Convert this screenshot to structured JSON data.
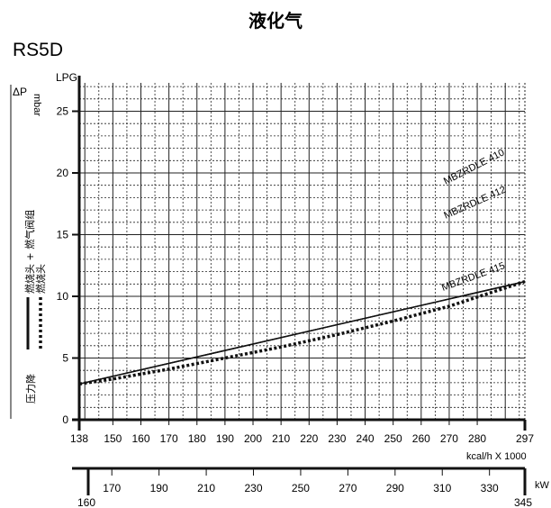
{
  "title": "液化气",
  "model": "RS5D",
  "fuel_label": "LPG",
  "y_symbol": "ΔP",
  "y_unit": "mbar",
  "side_labels": {
    "combined": "燃烧头 + 燃气阀组",
    "head": "燃烧头",
    "pressure_drop": "压力降"
  },
  "x_unit_kcal": "kcal/h X 1000",
  "x_unit_kw": "kW",
  "chart_data": {
    "type": "line",
    "grid": true,
    "ylim": [
      0,
      25
    ],
    "y_ticks": [
      0,
      5,
      10,
      15,
      20,
      25
    ],
    "x_kcal_ticks": [
      138,
      150,
      160,
      170,
      180,
      190,
      200,
      210,
      220,
      230,
      240,
      250,
      260,
      270,
      280,
      297
    ],
    "x_kw_ticks": [
      160,
      170,
      190,
      210,
      230,
      250,
      270,
      290,
      310,
      330,
      345
    ],
    "x_range_kcal": [
      138,
      297
    ],
    "series": [
      {
        "name": "MBZRDLE 410",
        "style": "solid",
        "x": [
          138,
          297
        ],
        "y": [
          2.9,
          11.2
        ]
      },
      {
        "name": "MBZRDLE 412",
        "style": "solid",
        "x": [
          138,
          297
        ],
        "y": [
          2.9,
          11.2
        ]
      },
      {
        "name": "MBZRDLE 415",
        "style": "dotted",
        "x": [
          138,
          150,
          170,
          190,
          210,
          230,
          250,
          270,
          297
        ],
        "y": [
          2.9,
          3.3,
          4.1,
          5.0,
          5.9,
          6.9,
          8.0,
          9.2,
          11.2
        ]
      }
    ],
    "series_labels": [
      "MBZRDLE 410",
      "MBZRDLE 412",
      "MBZRDLE 415"
    ]
  }
}
